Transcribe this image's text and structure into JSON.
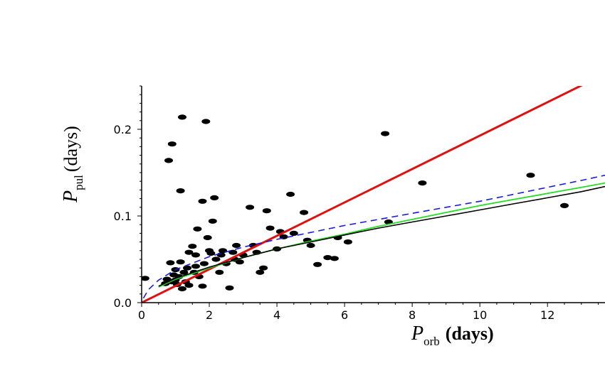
{
  "chart_data": {
    "type": "scatter",
    "title": "",
    "xlabel": {
      "symbol": "P",
      "subscript": "orb",
      "unit": "(days)"
    },
    "ylabel": {
      "symbol": "P",
      "subscript": "pul",
      "unit": "(days)"
    },
    "xlim": [
      0,
      13.7
    ],
    "ylim": [
      0,
      0.25
    ],
    "x_ticks": [
      0,
      2,
      4,
      6,
      8,
      10,
      12
    ],
    "x_tick_labels": [
      "0",
      "2",
      "4",
      "6",
      "8",
      "10",
      "12"
    ],
    "y_ticks": [
      0.0,
      0.1,
      0.2
    ],
    "y_tick_labels": [
      "0.0",
      "0.1",
      "0.2"
    ],
    "grid": false,
    "legend": "none",
    "colors": {
      "points": "#000000",
      "red_line": "#e01010",
      "green_curve": "#22dd22",
      "black_curve": "#000000",
      "blue_dashed": "#1a1adc"
    },
    "points": [
      [
        0.1,
        0.028
      ],
      [
        0.7,
        0.022
      ],
      [
        0.75,
        0.027
      ],
      [
        0.8,
        0.164
      ],
      [
        0.85,
        0.046
      ],
      [
        0.9,
        0.183
      ],
      [
        0.9,
        0.024
      ],
      [
        0.95,
        0.032
      ],
      [
        1.0,
        0.038
      ],
      [
        1.0,
        0.026
      ],
      [
        1.05,
        0.021
      ],
      [
        1.1,
        0.03
      ],
      [
        1.15,
        0.047
      ],
      [
        1.15,
        0.129
      ],
      [
        1.2,
        0.214
      ],
      [
        1.2,
        0.016
      ],
      [
        1.25,
        0.035
      ],
      [
        1.3,
        0.024
      ],
      [
        1.35,
        0.04
      ],
      [
        1.4,
        0.02
      ],
      [
        1.4,
        0.058
      ],
      [
        1.5,
        0.065
      ],
      [
        1.55,
        0.035
      ],
      [
        1.6,
        0.055
      ],
      [
        1.6,
        0.042
      ],
      [
        1.65,
        0.085
      ],
      [
        1.7,
        0.03
      ],
      [
        1.8,
        0.117
      ],
      [
        1.8,
        0.019
      ],
      [
        1.85,
        0.045
      ],
      [
        1.9,
        0.209
      ],
      [
        1.95,
        0.075
      ],
      [
        2.0,
        0.06
      ],
      [
        2.05,
        0.057
      ],
      [
        2.1,
        0.094
      ],
      [
        2.15,
        0.121
      ],
      [
        2.2,
        0.05
      ],
      [
        2.3,
        0.035
      ],
      [
        2.35,
        0.055
      ],
      [
        2.4,
        0.06
      ],
      [
        2.5,
        0.045
      ],
      [
        2.6,
        0.017
      ],
      [
        2.7,
        0.058
      ],
      [
        2.75,
        0.05
      ],
      [
        2.8,
        0.066
      ],
      [
        2.9,
        0.047
      ],
      [
        3.0,
        0.055
      ],
      [
        3.2,
        0.11
      ],
      [
        3.3,
        0.066
      ],
      [
        3.4,
        0.058
      ],
      [
        3.5,
        0.035
      ],
      [
        3.6,
        0.04
      ],
      [
        3.7,
        0.106
      ],
      [
        3.8,
        0.086
      ],
      [
        4.0,
        0.062
      ],
      [
        4.1,
        0.082
      ],
      [
        4.2,
        0.076
      ],
      [
        4.4,
        0.125
      ],
      [
        4.5,
        0.08
      ],
      [
        4.8,
        0.104
      ],
      [
        4.9,
        0.072
      ],
      [
        5.0,
        0.066
      ],
      [
        5.2,
        0.044
      ],
      [
        5.5,
        0.052
      ],
      [
        5.7,
        0.051
      ],
      [
        5.8,
        0.075
      ],
      [
        6.1,
        0.07
      ],
      [
        7.2,
        0.195
      ],
      [
        7.3,
        0.093
      ],
      [
        8.3,
        0.138
      ],
      [
        11.5,
        0.147
      ],
      [
        12.5,
        0.112
      ]
    ],
    "series": [
      {
        "style": "solid-red",
        "x": [
          0,
          13.7
        ],
        "y": [
          0,
          0.264
        ]
      },
      {
        "style": "solid-green",
        "x": [
          0.5,
          1,
          2,
          3,
          4,
          5,
          6,
          7,
          8,
          9,
          10,
          11,
          12,
          13,
          13.7
        ],
        "y": [
          0.018,
          0.027,
          0.04,
          0.052,
          0.062,
          0.071,
          0.079,
          0.088,
          0.096,
          0.104,
          0.112,
          0.119,
          0.126,
          0.133,
          0.138
        ]
      },
      {
        "style": "solid-black",
        "x": [
          0.5,
          1,
          2,
          3,
          4,
          5,
          6,
          7,
          8,
          9,
          10,
          11,
          12,
          13,
          13.7
        ],
        "y": [
          0.019,
          0.028,
          0.041,
          0.052,
          0.062,
          0.07,
          0.078,
          0.086,
          0.093,
          0.1,
          0.107,
          0.114,
          0.121,
          0.128,
          0.134
        ]
      },
      {
        "style": "dashed-blue",
        "x": [
          0.05,
          0.2,
          0.5,
          1,
          2,
          3,
          4,
          5,
          6,
          7,
          8,
          9,
          10,
          11,
          12,
          13,
          13.7
        ],
        "y": [
          0.005,
          0.015,
          0.026,
          0.038,
          0.053,
          0.064,
          0.073,
          0.081,
          0.089,
          0.096,
          0.103,
          0.11,
          0.117,
          0.125,
          0.133,
          0.141,
          0.147
        ]
      }
    ]
  }
}
